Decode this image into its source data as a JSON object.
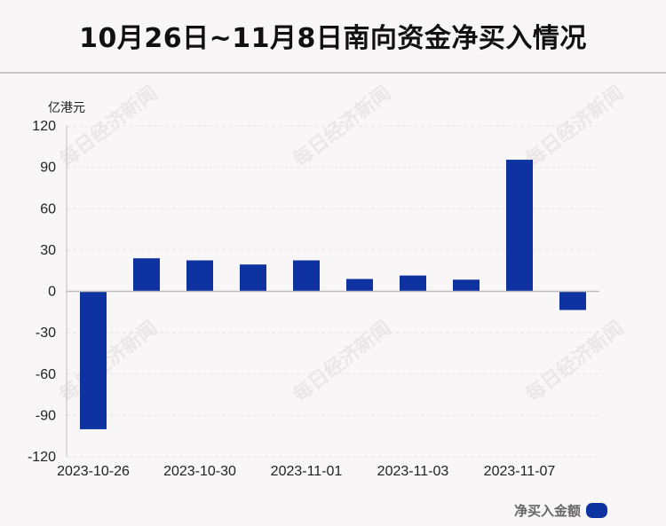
{
  "title": "10月26日~11月8日南向资金净买入情况",
  "watermark": "每日经济新闻",
  "colors": {
    "bar": "#0e33a0",
    "axis": "#bdbdbd",
    "grid": "#e6e3e4"
  },
  "chart_data": {
    "type": "bar",
    "ylabel": "亿港元",
    "ylim": [
      -120,
      120
    ],
    "yticks": [
      120,
      90,
      60,
      30,
      0,
      -30,
      -60,
      -90,
      -120
    ],
    "grid": true,
    "legend_position": "bottom-right",
    "xtick_labels": [
      "2023-10-26",
      "2023-10-30",
      "2023-11-01",
      "2023-11-03",
      "2023-11-07"
    ],
    "xtick_indices": [
      0,
      2,
      4,
      6,
      8
    ],
    "series": [
      {
        "name": "净买入金额",
        "values": [
          -100,
          24,
          22.5,
          19.5,
          22.5,
          9,
          11.5,
          8.5,
          95.5,
          -13.5
        ]
      }
    ]
  }
}
